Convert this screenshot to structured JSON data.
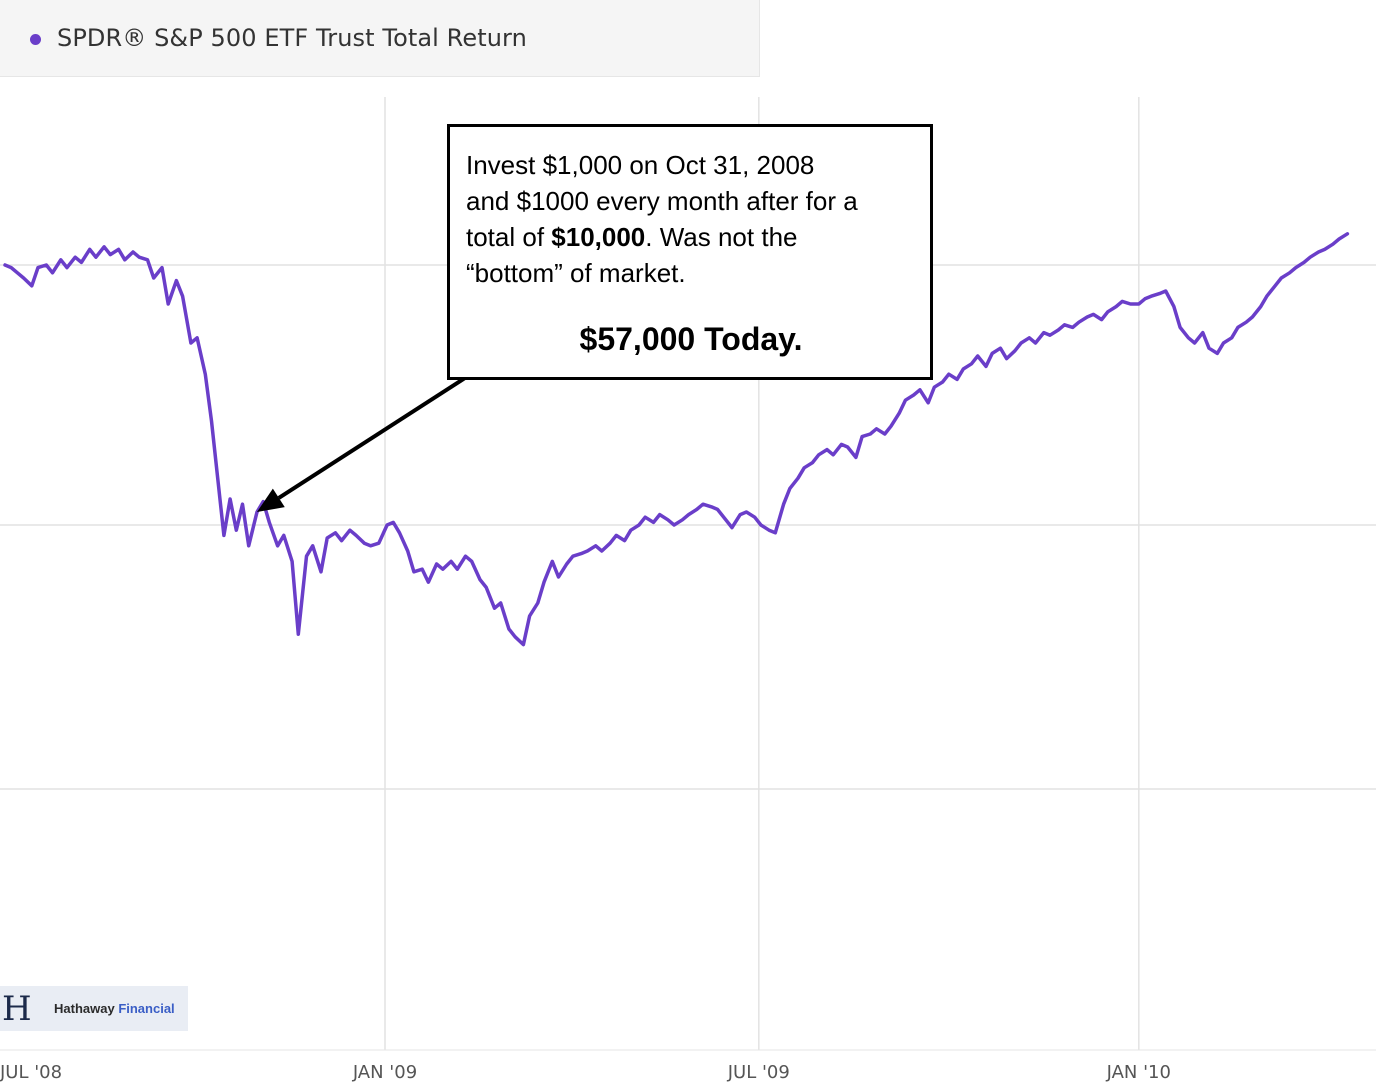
{
  "legend": {
    "label": "SPDR® S&P 500 ETF Trust Total Return",
    "color": "#6a3ec9"
  },
  "callout": {
    "line1": "Invest $1,000 on Oct 31, 2008",
    "line2": "and $1000 every month after for a",
    "line3_pre": "total of ",
    "line3_bold": "$10,000",
    "line3_post": ". Was not the",
    "line4": "“bottom” of market.",
    "highlight": "$57,000 Today."
  },
  "logo": {
    "mark": "H",
    "name_part1": "Hathaway ",
    "name_part2": "Financial"
  },
  "chart_data": {
    "type": "line",
    "title": "",
    "xlabel": "",
    "ylabel": "",
    "grid": true,
    "legend_position": "top-left",
    "x_ticks": [
      "JUL '08",
      "JAN '09",
      "JUL '09",
      "JAN '10"
    ],
    "y_ticks": [],
    "series": [
      {
        "name": "SPDR® S&P 500 ETF Trust Total Return",
        "color": "#6a3ec9",
        "points": [
          [
            "2008-07-01",
            100
          ],
          [
            "2008-07-04",
            99
          ],
          [
            "2008-07-07",
            97
          ],
          [
            "2008-07-10",
            95
          ],
          [
            "2008-07-14",
            92
          ],
          [
            "2008-07-17",
            99
          ],
          [
            "2008-07-21",
            100
          ],
          [
            "2008-07-24",
            97
          ],
          [
            "2008-07-28",
            102
          ],
          [
            "2008-07-31",
            99
          ],
          [
            "2008-08-04",
            103
          ],
          [
            "2008-08-07",
            101
          ],
          [
            "2008-08-11",
            106
          ],
          [
            "2008-08-14",
            103
          ],
          [
            "2008-08-18",
            107
          ],
          [
            "2008-08-21",
            104
          ],
          [
            "2008-08-25",
            106
          ],
          [
            "2008-08-28",
            102
          ],
          [
            "2008-09-01",
            105
          ],
          [
            "2008-09-04",
            103
          ],
          [
            "2008-09-08",
            102
          ],
          [
            "2008-09-11",
            95
          ],
          [
            "2008-09-15",
            99
          ],
          [
            "2008-09-18",
            85
          ],
          [
            "2008-09-22",
            94
          ],
          [
            "2008-09-25",
            88
          ],
          [
            "2008-09-29",
            70
          ],
          [
            "2008-10-02",
            72
          ],
          [
            "2008-10-06",
            58
          ],
          [
            "2008-10-09",
            40
          ],
          [
            "2008-10-12",
            18
          ],
          [
            "2008-10-15",
            -4
          ],
          [
            "2008-10-18",
            10
          ],
          [
            "2008-10-21",
            -2
          ],
          [
            "2008-10-24",
            8
          ],
          [
            "2008-10-27",
            -8
          ],
          [
            "2008-10-31",
            5
          ],
          [
            "2008-11-03",
            9
          ],
          [
            "2008-11-06",
            1
          ],
          [
            "2008-11-10",
            -8
          ],
          [
            "2008-11-13",
            -4
          ],
          [
            "2008-11-17",
            -14
          ],
          [
            "2008-11-20",
            -42
          ],
          [
            "2008-11-24",
            -12
          ],
          [
            "2008-11-27",
            -8
          ],
          [
            "2008-12-01",
            -18
          ],
          [
            "2008-12-04",
            -5
          ],
          [
            "2008-12-08",
            -3
          ],
          [
            "2008-12-11",
            -6
          ],
          [
            "2008-12-15",
            -2
          ],
          [
            "2008-12-18",
            -4
          ],
          [
            "2008-12-22",
            -7
          ],
          [
            "2008-12-25",
            -8
          ],
          [
            "2008-12-29",
            -7
          ],
          [
            "2009-01-02",
            0
          ],
          [
            "2009-01-05",
            1
          ],
          [
            "2009-01-08",
            -3
          ],
          [
            "2009-01-12",
            -10
          ],
          [
            "2009-01-15",
            -18
          ],
          [
            "2009-01-19",
            -17
          ],
          [
            "2009-01-22",
            -22
          ],
          [
            "2009-01-26",
            -15
          ],
          [
            "2009-01-29",
            -17
          ],
          [
            "2009-02-02",
            -14
          ],
          [
            "2009-02-05",
            -17
          ],
          [
            "2009-02-09",
            -12
          ],
          [
            "2009-02-12",
            -14
          ],
          [
            "2009-02-16",
            -21
          ],
          [
            "2009-02-19",
            -24
          ],
          [
            "2009-02-23",
            -32
          ],
          [
            "2009-02-26",
            -30
          ],
          [
            "2009-03-02",
            -40
          ],
          [
            "2009-03-05",
            -43
          ],
          [
            "2009-03-09",
            -46
          ],
          [
            "2009-03-12",
            -35
          ],
          [
            "2009-03-16",
            -30
          ],
          [
            "2009-03-19",
            -22
          ],
          [
            "2009-03-23",
            -14
          ],
          [
            "2009-03-26",
            -20
          ],
          [
            "2009-03-30",
            -15
          ],
          [
            "2009-04-02",
            -12
          ],
          [
            "2009-04-06",
            -11
          ],
          [
            "2009-04-09",
            -10
          ],
          [
            "2009-04-13",
            -8
          ],
          [
            "2009-04-16",
            -10
          ],
          [
            "2009-04-20",
            -7
          ],
          [
            "2009-04-23",
            -4
          ],
          [
            "2009-04-27",
            -6
          ],
          [
            "2009-04-30",
            -2
          ],
          [
            "2009-05-04",
            0
          ],
          [
            "2009-05-07",
            3
          ],
          [
            "2009-05-11",
            1
          ],
          [
            "2009-05-14",
            4
          ],
          [
            "2009-05-18",
            2
          ],
          [
            "2009-05-21",
            0
          ],
          [
            "2009-05-25",
            2
          ],
          [
            "2009-05-28",
            4
          ],
          [
            "2009-06-01",
            6
          ],
          [
            "2009-06-04",
            8
          ],
          [
            "2009-06-08",
            7
          ],
          [
            "2009-06-11",
            6
          ],
          [
            "2009-06-15",
            2
          ],
          [
            "2009-06-18",
            -1
          ],
          [
            "2009-06-22",
            4
          ],
          [
            "2009-06-25",
            5
          ],
          [
            "2009-06-29",
            3
          ],
          [
            "2009-07-02",
            0
          ],
          [
            "2009-07-06",
            -2
          ],
          [
            "2009-07-09",
            -3
          ],
          [
            "2009-07-13",
            8
          ],
          [
            "2009-07-16",
            14
          ],
          [
            "2009-07-20",
            18
          ],
          [
            "2009-07-23",
            22
          ],
          [
            "2009-07-27",
            24
          ],
          [
            "2009-07-30",
            27
          ],
          [
            "2009-08-03",
            29
          ],
          [
            "2009-08-06",
            27
          ],
          [
            "2009-08-10",
            31
          ],
          [
            "2009-08-13",
            30
          ],
          [
            "2009-08-17",
            26
          ],
          [
            "2009-08-20",
            34
          ],
          [
            "2009-08-24",
            35
          ],
          [
            "2009-08-27",
            37
          ],
          [
            "2009-08-31",
            35
          ],
          [
            "2009-09-03",
            38
          ],
          [
            "2009-09-07",
            43
          ],
          [
            "2009-09-10",
            48
          ],
          [
            "2009-09-14",
            50
          ],
          [
            "2009-09-17",
            52
          ],
          [
            "2009-09-21",
            47
          ],
          [
            "2009-09-24",
            53
          ],
          [
            "2009-09-28",
            55
          ],
          [
            "2009-10-01",
            58
          ],
          [
            "2009-10-05",
            56
          ],
          [
            "2009-10-08",
            60
          ],
          [
            "2009-10-12",
            62
          ],
          [
            "2009-10-15",
            65
          ],
          [
            "2009-10-19",
            61
          ],
          [
            "2009-10-22",
            66
          ],
          [
            "2009-10-26",
            68
          ],
          [
            "2009-10-29",
            64
          ],
          [
            "2009-11-02",
            67
          ],
          [
            "2009-11-05",
            70
          ],
          [
            "2009-11-09",
            72
          ],
          [
            "2009-11-12",
            70
          ],
          [
            "2009-11-16",
            74
          ],
          [
            "2009-11-19",
            73
          ],
          [
            "2009-11-23",
            75
          ],
          [
            "2009-11-26",
            77
          ],
          [
            "2009-11-30",
            76
          ],
          [
            "2009-12-03",
            78
          ],
          [
            "2009-12-07",
            80
          ],
          [
            "2009-12-10",
            81
          ],
          [
            "2009-12-14",
            79
          ],
          [
            "2009-12-17",
            82
          ],
          [
            "2009-12-21",
            84
          ],
          [
            "2009-12-24",
            86
          ],
          [
            "2009-12-28",
            85
          ],
          [
            "2010-01-01",
            85
          ],
          [
            "2010-01-04",
            87
          ],
          [
            "2010-01-07",
            88
          ],
          [
            "2010-01-11",
            89
          ],
          [
            "2010-01-14",
            90
          ],
          [
            "2010-01-18",
            84
          ],
          [
            "2010-01-21",
            76
          ],
          [
            "2010-01-25",
            72
          ],
          [
            "2010-01-28",
            70
          ],
          [
            "2010-02-01",
            74
          ],
          [
            "2010-02-04",
            68
          ],
          [
            "2010-02-08",
            66
          ],
          [
            "2010-02-11",
            70
          ],
          [
            "2010-02-15",
            72
          ],
          [
            "2010-02-18",
            76
          ],
          [
            "2010-02-22",
            78
          ],
          [
            "2010-02-25",
            80
          ],
          [
            "2010-03-01",
            84
          ],
          [
            "2010-03-04",
            88
          ],
          [
            "2010-03-08",
            92
          ],
          [
            "2010-03-11",
            95
          ],
          [
            "2010-03-15",
            97
          ],
          [
            "2010-03-18",
            99
          ],
          [
            "2010-03-22",
            101
          ],
          [
            "2010-03-25",
            103
          ],
          [
            "2010-03-29",
            105
          ],
          [
            "2010-04-01",
            106
          ],
          [
            "2010-04-05",
            108
          ],
          [
            "2010-04-08",
            110
          ],
          [
            "2010-04-12",
            112
          ]
        ]
      }
    ],
    "annotation": {
      "target_date": "2008-10-31",
      "text": "Invest $1,000 on Oct 31, 2008 and $1000 every month after for a total of $10,000. Was not the “bottom” of market. $57,000 Today."
    }
  }
}
